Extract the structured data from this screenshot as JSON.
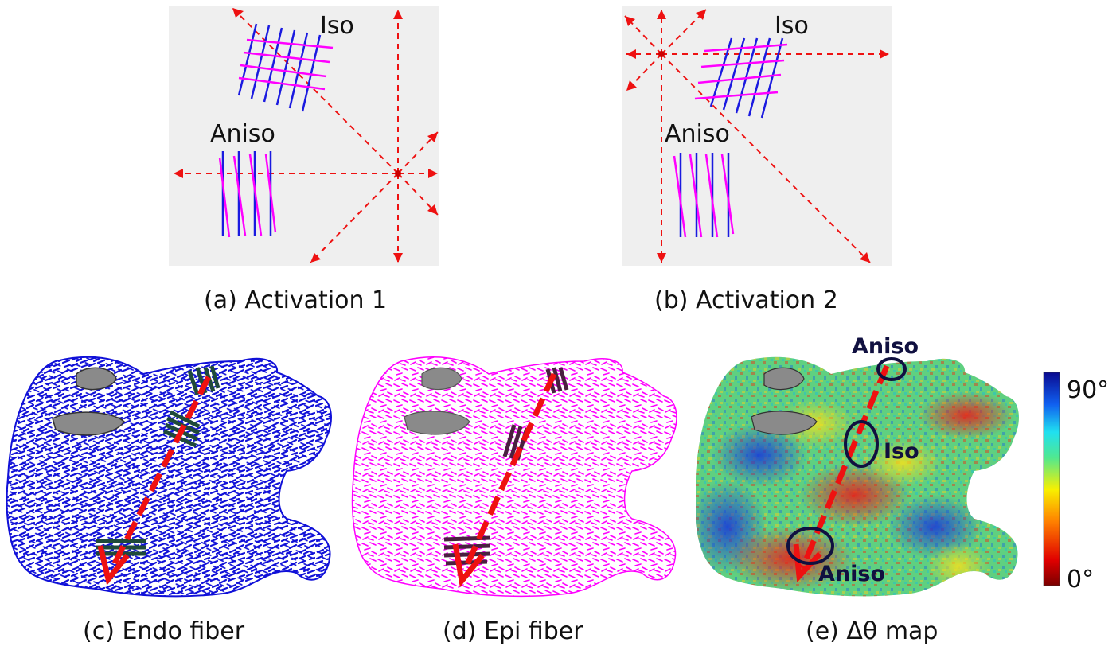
{
  "panels": {
    "a": {
      "caption": "(a) Activation 1",
      "label_iso": "Iso",
      "label_aniso": "Aniso"
    },
    "b": {
      "caption": "(b) Activation 2",
      "label_iso": "Iso",
      "label_aniso": "Aniso"
    },
    "c": {
      "caption": "(c) Endo fiber"
    },
    "d": {
      "caption": "(d) Epi fiber"
    },
    "e": {
      "caption": "(e) Δθ map",
      "label_aniso_top": "Aniso",
      "label_iso": "Iso",
      "label_aniso_bottom": "Aniso",
      "colorbar_max": "90°",
      "colorbar_min": "0°"
    }
  },
  "colors": {
    "endo_fiber": "#1010d8",
    "epi_fiber": "#ff00ff",
    "arrow": "#ee1111",
    "panel_bg": "#efefef",
    "valve": "#8a8a8a"
  }
}
